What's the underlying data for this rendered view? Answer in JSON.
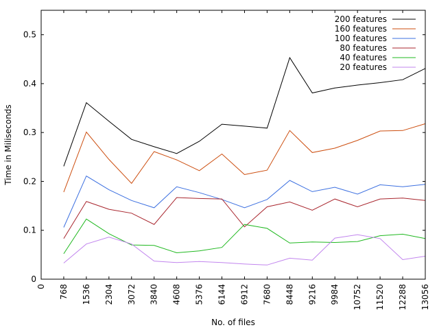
{
  "chart_data": {
    "type": "line",
    "title": "",
    "xlabel": "No. of files",
    "ylabel": "Time in Miliseconds",
    "xlim": [
      0,
      13056
    ],
    "ylim": [
      0,
      0.55
    ],
    "grid": false,
    "legend_position": "top-right",
    "x_ticks": [
      "0",
      "768",
      "1536",
      "2304",
      "3072",
      "3840",
      "4608",
      "5376",
      "6144",
      "6912",
      "7680",
      "8448",
      "9216",
      "9984",
      "10752",
      "11520",
      "12288",
      "13056"
    ],
    "y_ticks": [
      "0",
      "0.1",
      "0.2",
      "0.3",
      "0.4",
      "0.5"
    ],
    "x": [
      768,
      1536,
      2304,
      3072,
      3840,
      4608,
      5376,
      6144,
      6912,
      7680,
      8448,
      9216,
      9984,
      10752,
      11520,
      12288,
      13056
    ],
    "series": [
      {
        "name": "200 features",
        "color": "#000000",
        "values": [
          0.231,
          0.361,
          0.323,
          0.286,
          0.271,
          0.257,
          0.282,
          0.317,
          0.313,
          0.309,
          0.453,
          0.381,
          0.391,
          0.397,
          0.402,
          0.408,
          0.431
        ]
      },
      {
        "name": "160 features",
        "color": "#cc4d0e",
        "values": [
          0.178,
          0.301,
          0.245,
          0.196,
          0.261,
          0.244,
          0.222,
          0.256,
          0.214,
          0.223,
          0.304,
          0.259,
          0.268,
          0.284,
          0.303,
          0.304,
          0.318
        ]
      },
      {
        "name": "100 features",
        "color": "#3b6fe0",
        "values": [
          0.106,
          0.211,
          0.183,
          0.161,
          0.146,
          0.189,
          0.177,
          0.163,
          0.146,
          0.163,
          0.202,
          0.179,
          0.188,
          0.174,
          0.193,
          0.189,
          0.194
        ]
      },
      {
        "name": "80 features",
        "color": "#a8242c",
        "values": [
          0.083,
          0.159,
          0.143,
          0.135,
          0.112,
          0.167,
          0.165,
          0.164,
          0.107,
          0.148,
          0.158,
          0.141,
          0.164,
          0.148,
          0.164,
          0.166,
          0.161
        ]
      },
      {
        "name": "40 features",
        "color": "#1fb81f",
        "values": [
          0.052,
          0.123,
          0.093,
          0.07,
          0.069,
          0.054,
          0.058,
          0.065,
          0.112,
          0.104,
          0.074,
          0.076,
          0.075,
          0.077,
          0.089,
          0.092,
          0.083
        ]
      },
      {
        "name": "20 features",
        "color": "#c184ee",
        "values": [
          0.033,
          0.072,
          0.086,
          0.072,
          0.037,
          0.034,
          0.036,
          0.034,
          0.031,
          0.029,
          0.043,
          0.039,
          0.084,
          0.091,
          0.083,
          0.04,
          0.047
        ]
      }
    ]
  }
}
